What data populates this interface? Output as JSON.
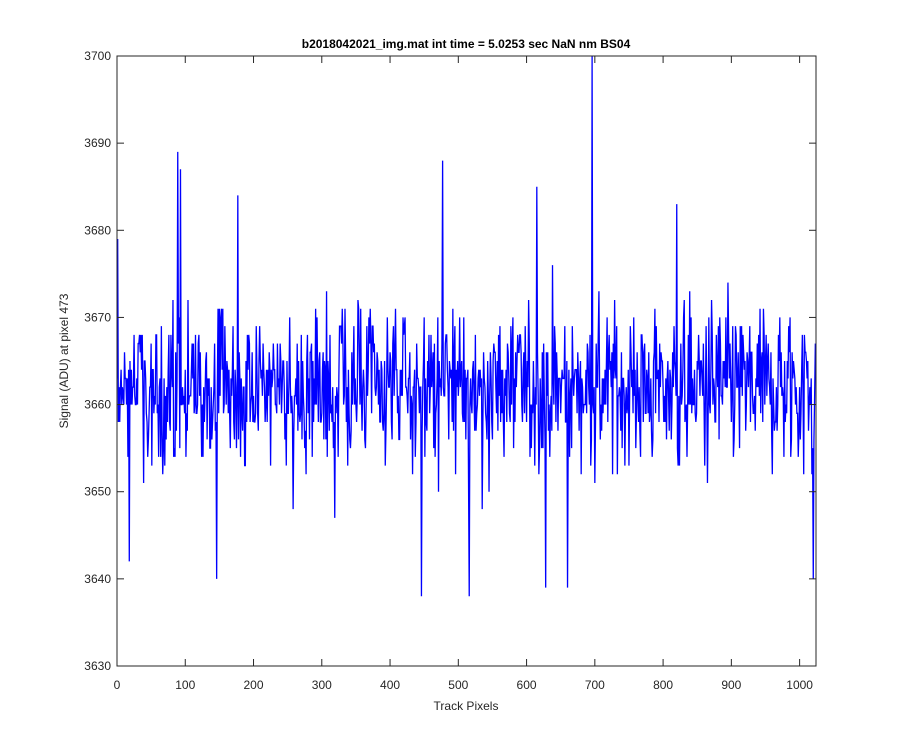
{
  "chart_data": {
    "type": "line",
    "title": "b2018042021_img.mat int time = 5.0253 sec  NaN nm BS04",
    "xlabel": "Track Pixels",
    "ylabel": "Signal (ADU) at pixel 473",
    "xlim": [
      0,
      1024
    ],
    "ylim": [
      3630,
      3700
    ],
    "xticks": [
      0,
      100,
      200,
      300,
      400,
      500,
      600,
      700,
      800,
      900,
      1000
    ],
    "yticks": [
      3630,
      3640,
      3650,
      3660,
      3670,
      3680,
      3690,
      3700
    ],
    "grid": false,
    "legend": "none",
    "series": [
      {
        "color": "#0000ff",
        "n_points": 1024,
        "mean": 3662,
        "min": 3638,
        "max": 3700,
        "notable_points": [
          {
            "x": 1,
            "y": 3679
          },
          {
            "x": 18,
            "y": 3642
          },
          {
            "x": 89,
            "y": 3689
          },
          {
            "x": 93,
            "y": 3687
          },
          {
            "x": 146,
            "y": 3640
          },
          {
            "x": 177,
            "y": 3684
          },
          {
            "x": 446,
            "y": 3638
          },
          {
            "x": 477,
            "y": 3688
          },
          {
            "x": 516,
            "y": 3638
          },
          {
            "x": 615,
            "y": 3685
          },
          {
            "x": 628,
            "y": 3639
          },
          {
            "x": 660,
            "y": 3639
          },
          {
            "x": 696,
            "y": 3700
          },
          {
            "x": 820,
            "y": 3683
          },
          {
            "x": 1020,
            "y": 3640
          }
        ]
      }
    ]
  }
}
